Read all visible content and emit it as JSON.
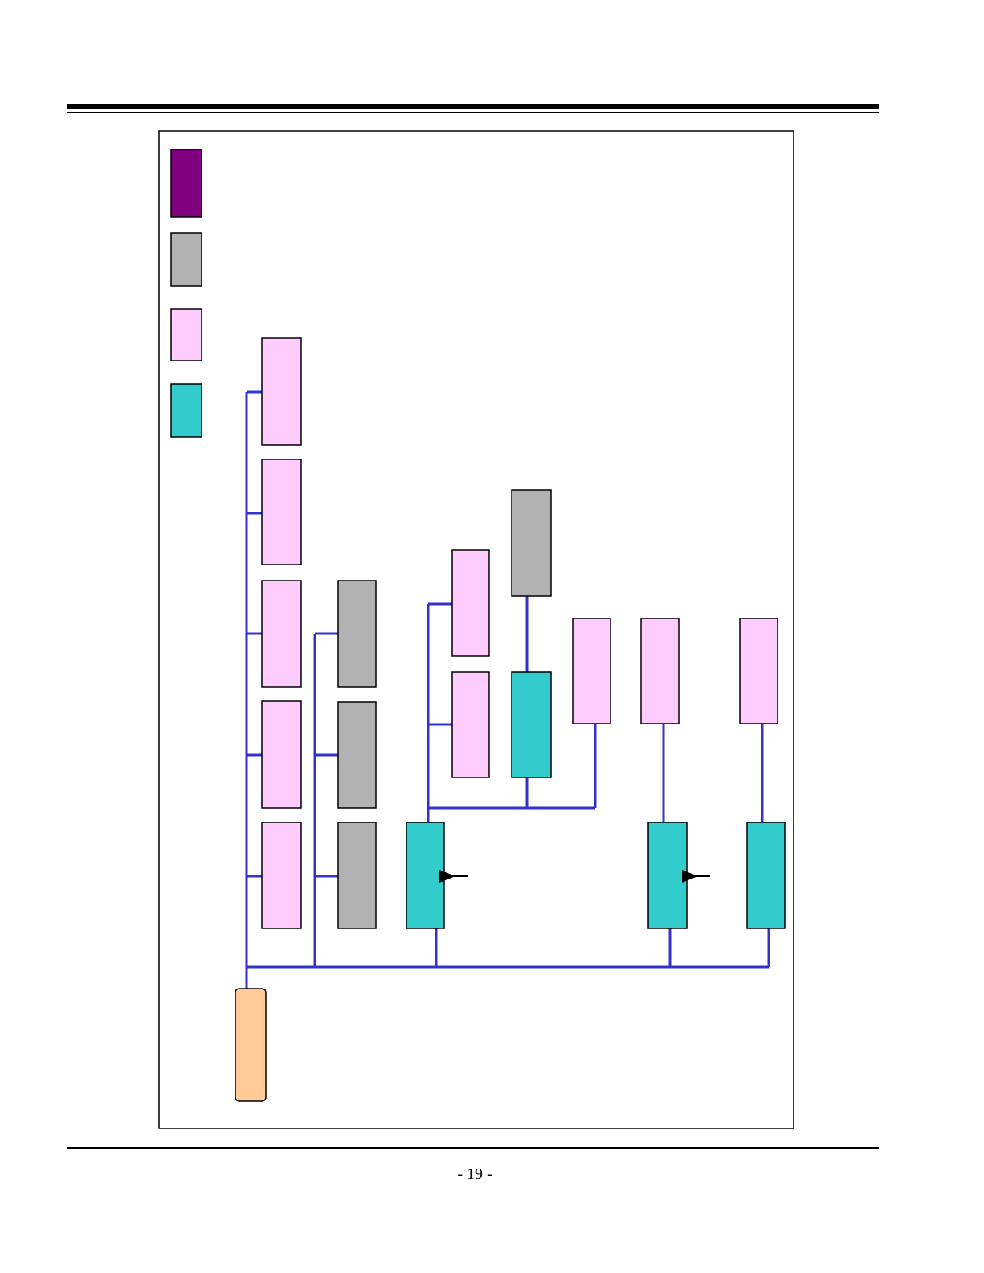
{
  "footer": {
    "page_number": "- 19 -"
  }
}
